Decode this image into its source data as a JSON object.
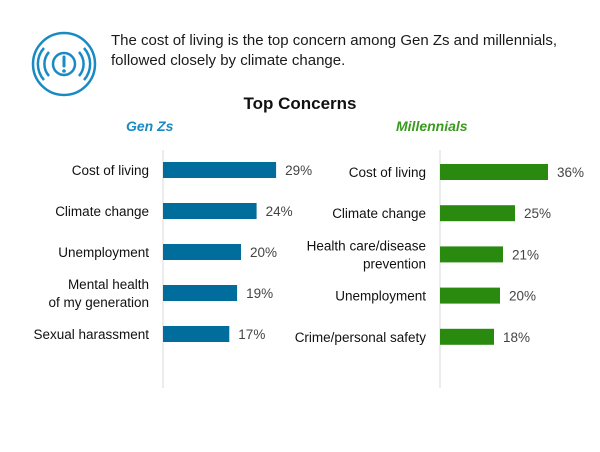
{
  "headline": "The cost of living is the top concern among Gen Zs and millennials, followed closely by climate change.",
  "icon": "alert-exclamation-circle-icon",
  "colors": {
    "icon": "#1a8ac4",
    "genz_bar": "#006d9c",
    "genz_title": "#1a8ac4",
    "millennial_bar": "#2a8a10",
    "millennial_title": "#3a9a20"
  },
  "chart_data": [
    {
      "type": "bar",
      "orientation": "horizontal",
      "title": "Top Concerns",
      "subtitle": "Gen Zs",
      "categories": [
        "Cost of living",
        "Climate change",
        "Unemployment",
        "Mental health of my generation",
        "Sexual harassment"
      ],
      "values": [
        29,
        24,
        20,
        19,
        17
      ],
      "data_labels": [
        "29%",
        "24%",
        "20%",
        "19%",
        "17%"
      ],
      "unit": "%",
      "grid": false
    },
    {
      "type": "bar",
      "orientation": "horizontal",
      "title": "Top Concerns",
      "subtitle": "Millennials",
      "categories": [
        "Cost of living",
        "Climate change",
        "Health care/disease prevention",
        "Unemployment",
        "Crime/personal safety"
      ],
      "values": [
        36,
        25,
        21,
        20,
        18
      ],
      "data_labels": [
        "36%",
        "25%",
        "21%",
        "20%",
        "18%"
      ],
      "unit": "%",
      "grid": false
    }
  ]
}
